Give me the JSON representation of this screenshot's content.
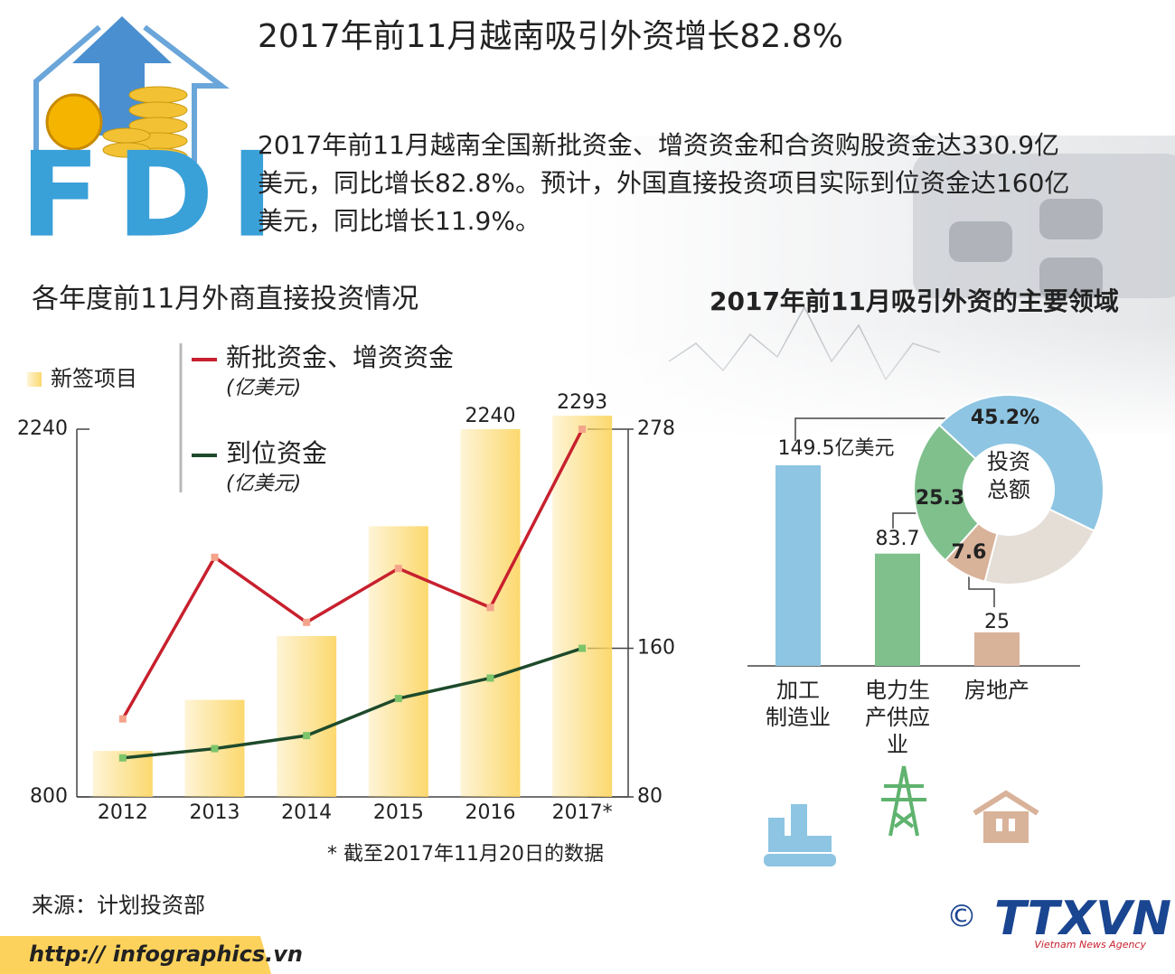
{
  "header": {
    "title": "2017年前11月越南吸引外资增长82.8%",
    "intro": "2017年前11月越南全国新批资金、增资资金和合资购股资金达330.9亿美元，同比增长82.8%。预计，外国直接投资项目实际到位资金达160亿美元，同比增长11.9%。",
    "logo": "FDI"
  },
  "chart_data": [
    {
      "type": "bar",
      "title": "各年度前11月外商直接投资情况",
      "categories": [
        "2012",
        "2013",
        "2014",
        "2015",
        "2016",
        "2017*"
      ],
      "series": [
        {
          "name": "新签项目",
          "type": "bar",
          "color": "#fbd45e",
          "values": [
            980,
            1180,
            1430,
            1860,
            2240,
            2293
          ]
        },
        {
          "name": "新批资金、增资资金",
          "unit": "(亿美元)",
          "type": "line",
          "axis": "y2",
          "color": "#c8202e",
          "values": [
            122,
            209,
            174,
            203,
            182,
            278
          ]
        },
        {
          "name": "到位资金",
          "unit": "(亿美元)",
          "type": "line",
          "axis": "y2",
          "color": "#1d4a2b",
          "values": [
            101,
            106,
            113,
            133,
            144,
            160
          ]
        }
      ],
      "ylim": [
        800,
        2240
      ],
      "yticks": [
        800,
        2240
      ],
      "y2lim": [
        80,
        278
      ],
      "y2ticks": [
        80,
        160,
        278
      ],
      "note": "* 截至2017年11月20日的数据"
    },
    {
      "type": "bar",
      "title": "2017年前11月吸引外资的主要领域",
      "categories": [
        [
          "加工",
          "制造业"
        ],
        [
          "电力生",
          "产供应",
          "业"
        ],
        [
          "房地产"
        ]
      ],
      "values": [
        149.5,
        83.7,
        25
      ],
      "value_labels": [
        "149.5亿美元",
        "83.7",
        "25"
      ],
      "colors": [
        "#8ec5e3",
        "#7fc08d",
        "#d9b29a"
      ]
    },
    {
      "type": "pie",
      "values": [
        45.2,
        21.9,
        7.6,
        25.3
      ],
      "value_labels": [
        "45.2%",
        null,
        "7.6",
        "25.3"
      ],
      "colors": [
        "#8ec5e3",
        "#e4ded6",
        "#d9b29a",
        "#7fc08d"
      ],
      "center_label": [
        "投资",
        "总额"
      ]
    }
  ],
  "footer": {
    "source": "来源：计划投资部",
    "url": "http:// infographics.vn",
    "copyright": "©",
    "brand": "TTXVN",
    "brand_sub": "Vietnam News Agency"
  }
}
